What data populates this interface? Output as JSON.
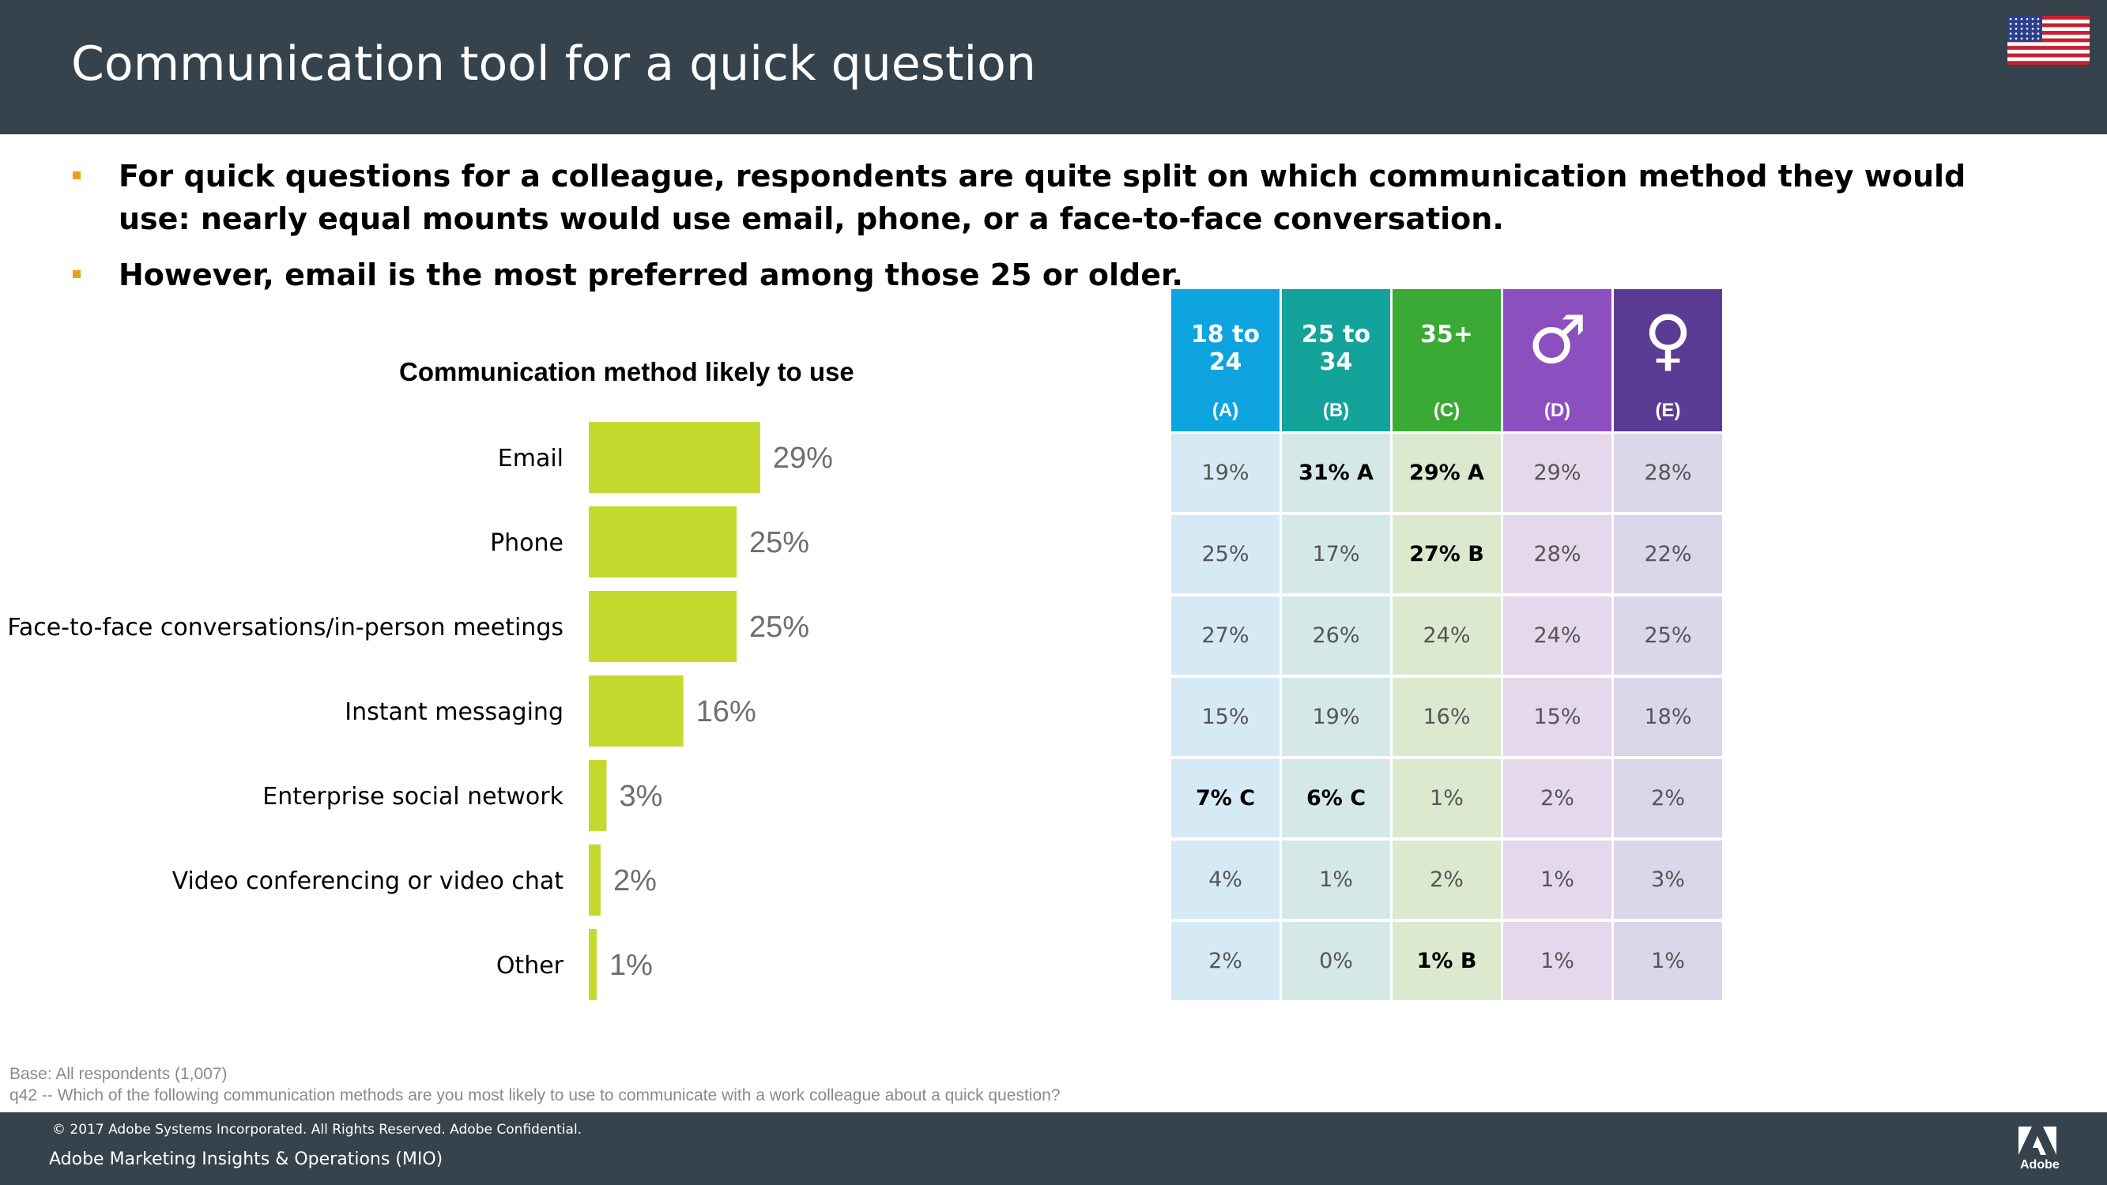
{
  "header": {
    "title": "Communication tool for a quick question"
  },
  "bullets": [
    {
      "text": "For quick questions for a colleague, respondents are quite split on which communication method they would use: nearly equal mounts would use email, phone, or a face-to-face conversation."
    },
    {
      "text": "However, email is the most preferred among those 25 or older."
    }
  ],
  "colors": {
    "bar": "#c4d92e",
    "header_bg": "#36424c",
    "bullet": "#e8a317"
  },
  "chart_data": {
    "type": "bar",
    "orientation": "horizontal",
    "title": "Communication method likely to use",
    "categories": [
      "Email",
      "Phone",
      "Face-to-face conversations/in-person meetings",
      "Instant messaging",
      "Enterprise social network",
      "Video conferencing or video chat",
      "Other"
    ],
    "values": [
      29,
      25,
      25,
      16,
      3,
      2,
      1
    ],
    "value_labels": [
      "29%",
      "25%",
      "25%",
      "16%",
      "3%",
      "2%",
      "1%"
    ],
    "xlim": [
      0,
      100
    ],
    "unit": "%",
    "grid": false,
    "legend": "none"
  },
  "table": {
    "columns": [
      {
        "label": "18 to 24",
        "letter": "(A)",
        "header_color": "#0ea4e0",
        "cell_color": "#d6eaf6"
      },
      {
        "label": "25 to 34",
        "letter": "(B)",
        "header_color": "#13a39a",
        "cell_color": "#d4e9e6"
      },
      {
        "label": "35+",
        "letter": "(C)",
        "header_color": "#3aaa35",
        "cell_color": "#dce9cf"
      },
      {
        "label": "♂",
        "letter": "(D)",
        "header_color": "#8b4fc0",
        "cell_color": "#e5d8ec"
      },
      {
        "label": "♀",
        "letter": "(E)",
        "header_color": "#5b3c95",
        "cell_color": "#dcd6ea"
      }
    ],
    "rows": [
      [
        {
          "text": "19%",
          "sig": false
        },
        {
          "text": "31% A",
          "sig": true
        },
        {
          "text": "29% A",
          "sig": true
        },
        {
          "text": "29%",
          "sig": false
        },
        {
          "text": "28%",
          "sig": false
        }
      ],
      [
        {
          "text": "25%",
          "sig": false
        },
        {
          "text": "17%",
          "sig": false
        },
        {
          "text": "27% B",
          "sig": true
        },
        {
          "text": "28%",
          "sig": false
        },
        {
          "text": "22%",
          "sig": false
        }
      ],
      [
        {
          "text": "27%",
          "sig": false
        },
        {
          "text": "26%",
          "sig": false
        },
        {
          "text": "24%",
          "sig": false
        },
        {
          "text": "24%",
          "sig": false
        },
        {
          "text": "25%",
          "sig": false
        }
      ],
      [
        {
          "text": "15%",
          "sig": false
        },
        {
          "text": "19%",
          "sig": false
        },
        {
          "text": "16%",
          "sig": false
        },
        {
          "text": "15%",
          "sig": false
        },
        {
          "text": "18%",
          "sig": false
        }
      ],
      [
        {
          "text": "7% C",
          "sig": true
        },
        {
          "text": "6% C",
          "sig": true
        },
        {
          "text": "1%",
          "sig": false
        },
        {
          "text": "2%",
          "sig": false
        },
        {
          "text": "2%",
          "sig": false
        }
      ],
      [
        {
          "text": "4%",
          "sig": false
        },
        {
          "text": "1%",
          "sig": false
        },
        {
          "text": "2%",
          "sig": false
        },
        {
          "text": "1%",
          "sig": false
        },
        {
          "text": "3%",
          "sig": false
        }
      ],
      [
        {
          "text": "2%",
          "sig": false
        },
        {
          "text": "0%",
          "sig": false
        },
        {
          "text": "1% B",
          "sig": true
        },
        {
          "text": "1%",
          "sig": false
        },
        {
          "text": "1%",
          "sig": false
        }
      ]
    ]
  },
  "notes": {
    "base": "Base: All respondents (1,007)",
    "question": "q42 -- Which of the following communication methods are you most likely to use to communicate with a work colleague about a quick question?"
  },
  "footer": {
    "copyright": "© 2017 Adobe Systems Incorporated.  All Rights Reserved.  Adobe Confidential.",
    "org": "Adobe Marketing Insights & Operations (MIO)",
    "logo_text": "Adobe"
  }
}
